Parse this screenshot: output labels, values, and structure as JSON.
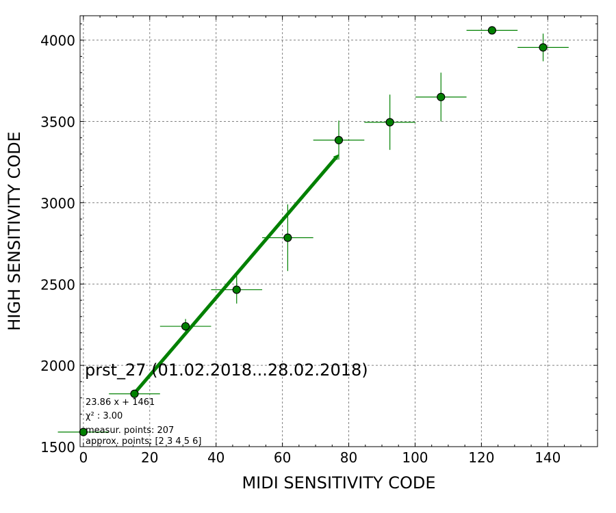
{
  "chart_data": {
    "type": "scatter",
    "title": "prst_27 (01.02.2018...28.02.2018)",
    "xlabel": "MIDI SENSITIVITY CODE",
    "ylabel": "HIGH SENSITIVITY CODE",
    "xlim": [
      -1,
      155
    ],
    "ylim": [
      1500,
      4150
    ],
    "xticks": [
      "0",
      "20",
      "40",
      "60",
      "80",
      "100",
      "120",
      "140"
    ],
    "yticks": [
      "1500",
      "2000",
      "2500",
      "3000",
      "3500",
      "4000"
    ],
    "grid": true,
    "color": "#008000",
    "points": [
      {
        "x": 0,
        "y": 1590,
        "xerr": 7.7,
        "yerr": 0
      },
      {
        "x": 15.4,
        "y": 1825,
        "xerr": 7.7,
        "yerr": 0
      },
      {
        "x": 30.8,
        "y": 2240,
        "xerr": 7.7,
        "yerr": 45
      },
      {
        "x": 46.2,
        "y": 2465,
        "xerr": 7.7,
        "yerr": 85
      },
      {
        "x": 61.6,
        "y": 2785,
        "xerr": 7.7,
        "yerr": 205
      },
      {
        "x": 77.0,
        "y": 3385,
        "xerr": 7.7,
        "yerr": 120
      },
      {
        "x": 92.4,
        "y": 3495,
        "xerr": 7.7,
        "yerr": 170
      },
      {
        "x": 107.8,
        "y": 3650,
        "xerr": 7.7,
        "yerr": 150
      },
      {
        "x": 123.2,
        "y": 4060,
        "xerr": 7.7,
        "yerr": 0
      },
      {
        "x": 138.6,
        "y": 3955,
        "xerr": 7.7,
        "yerr": 85
      }
    ],
    "fit_line": {
      "slope": 23.86,
      "intercept": 1461,
      "x_start": 15.4,
      "x_end": 77.0
    },
    "annotations": {
      "equation": "23.86 x + 1461",
      "chi2": "χ² : 3.00",
      "measur_points": "measur. points: 207",
      "approx_points": "approx. points: [2 3 4 5 6]"
    }
  }
}
